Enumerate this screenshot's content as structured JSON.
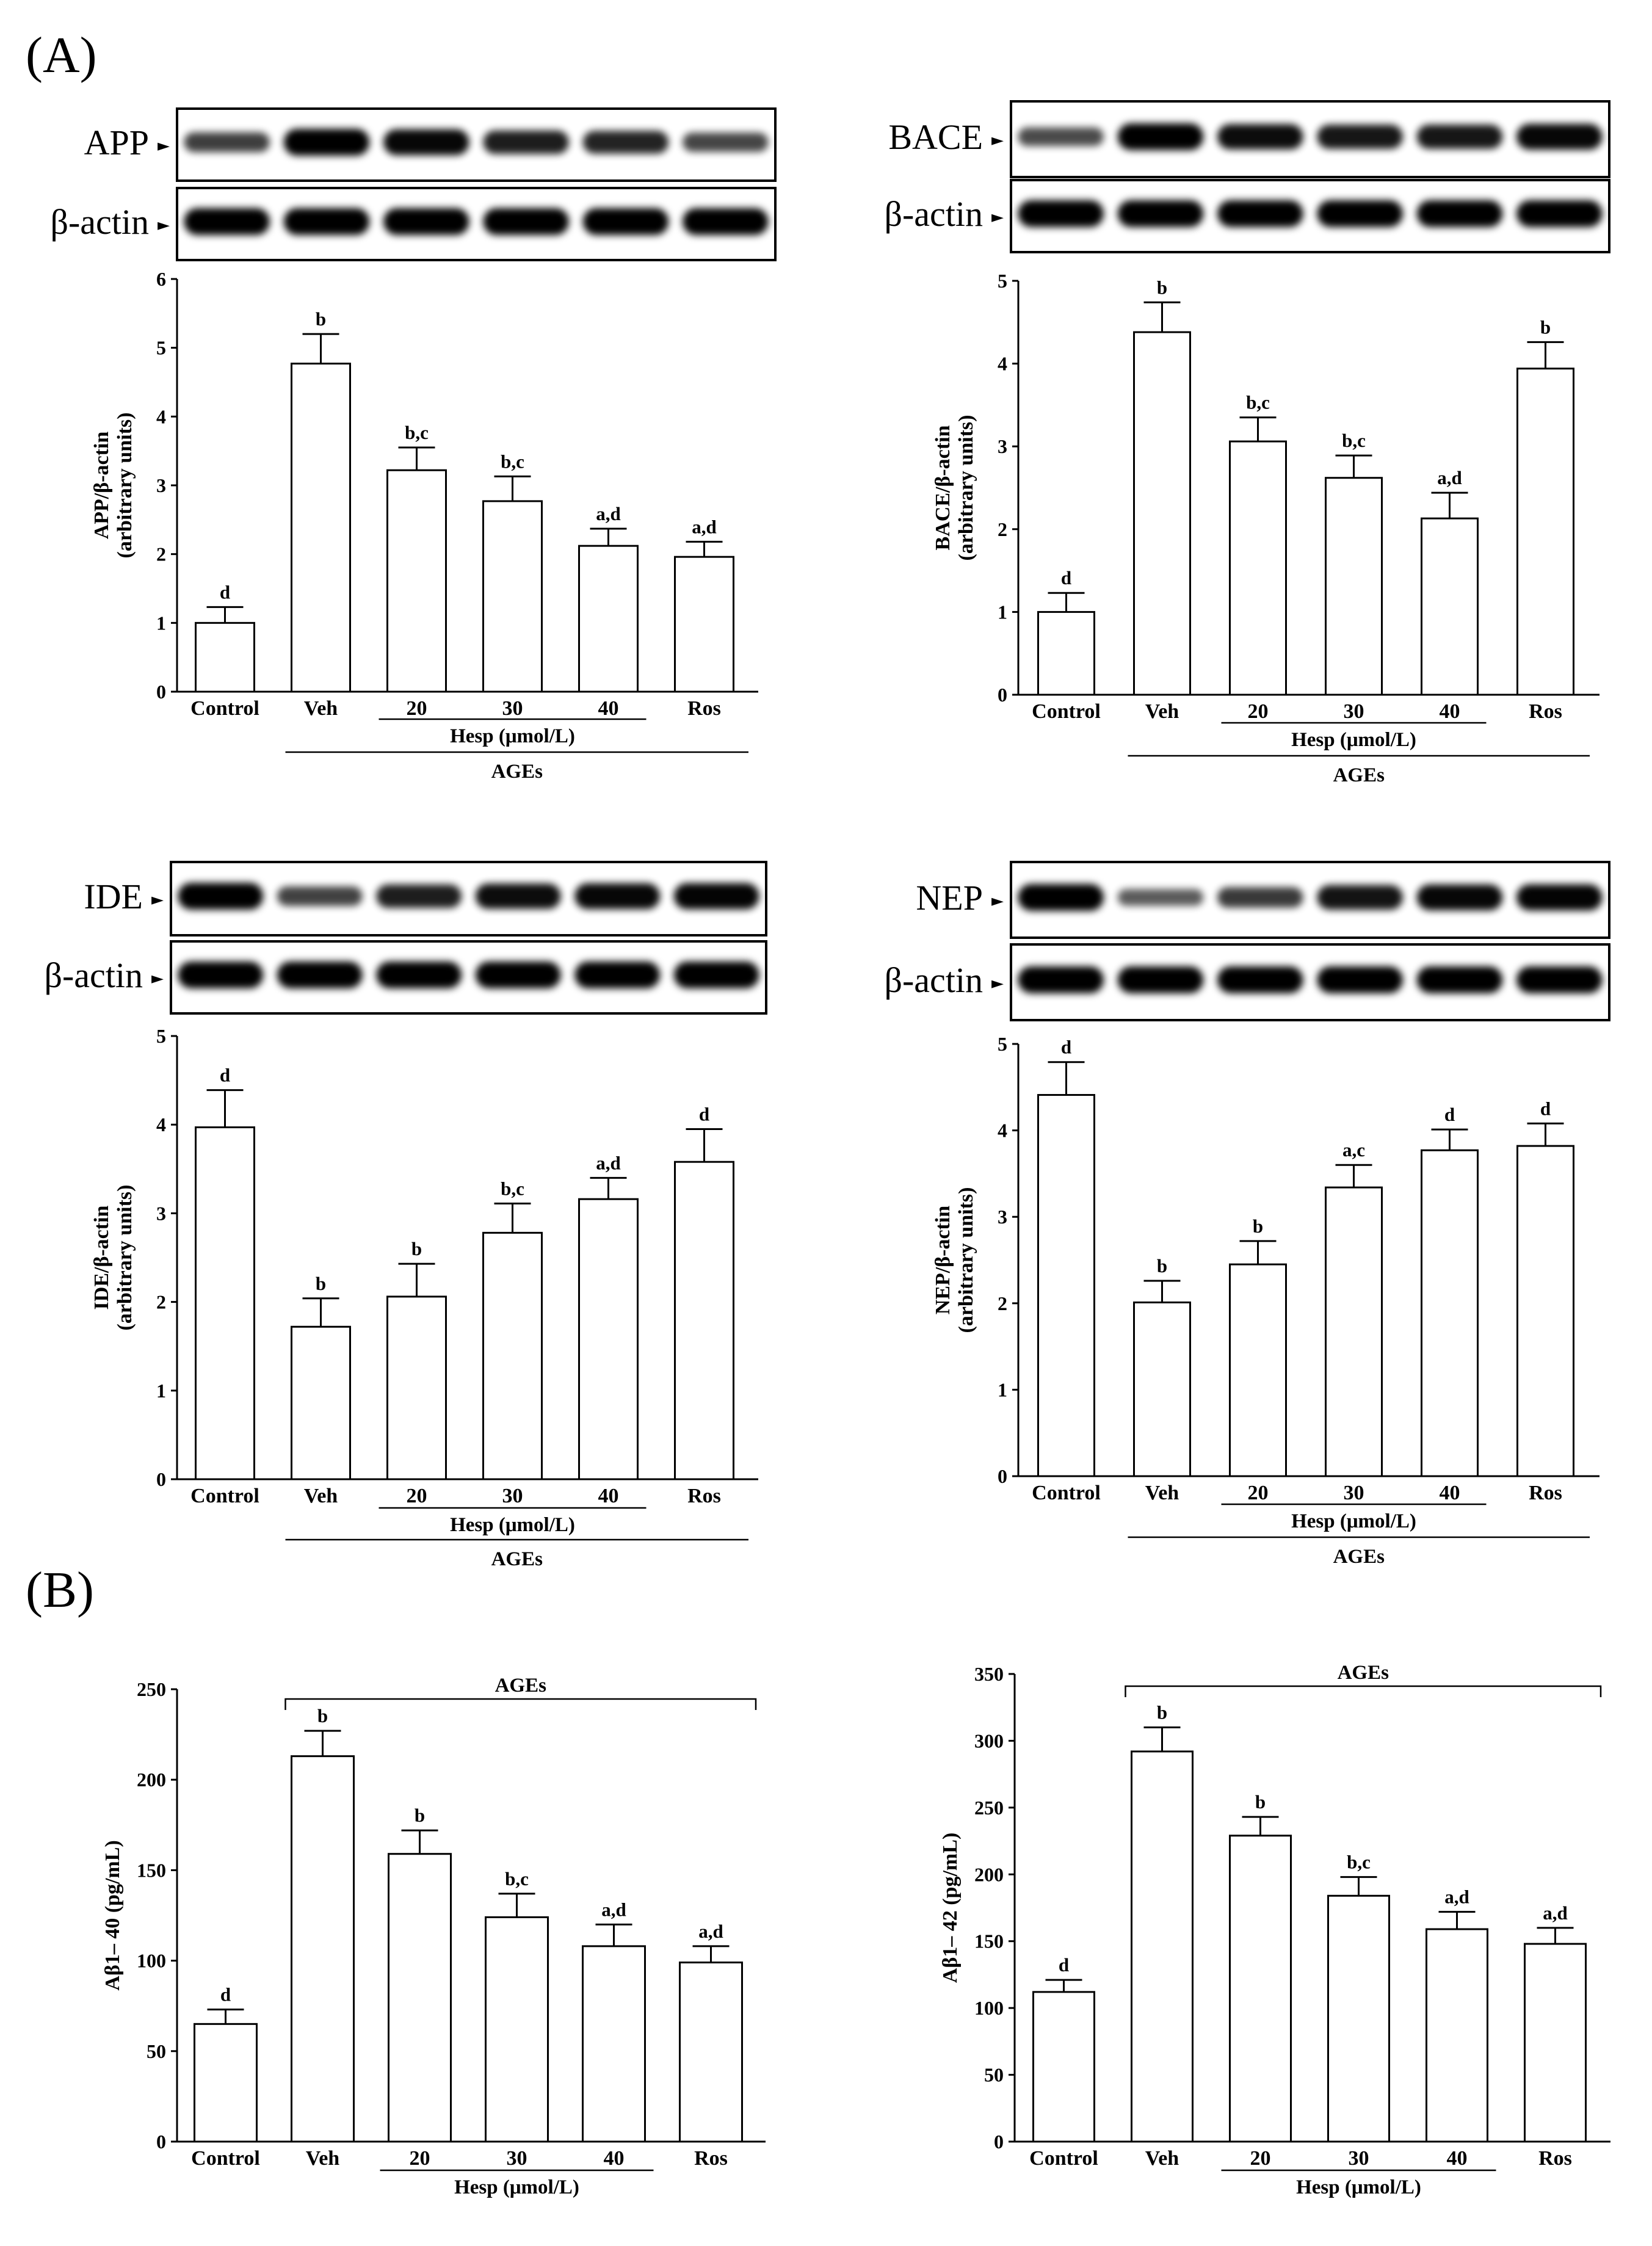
{
  "panels": {
    "a": "(A)",
    "b": "(B)"
  },
  "shared": {
    "categories": [
      "Control",
      "Veh",
      "20",
      "30",
      "40",
      "Ros"
    ],
    "hesp_label": "Hesp (μmol/L)",
    "ages_label": "AGEs",
    "band_arrow": "►"
  },
  "chart_data": [
    {
      "id": "app",
      "type": "bar",
      "title": "",
      "blot_target": "APP",
      "blot_ref": "β-actin",
      "ylabel_line1": "APP/β-actin",
      "ylabel_line2": "(arbitrary units)",
      "ylim": [
        0,
        6
      ],
      "yticks": [
        0,
        1,
        2,
        3,
        4,
        5,
        6
      ],
      "categories": [
        "Control",
        "Veh",
        "20",
        "30",
        "40",
        "Ros"
      ],
      "values": [
        1.0,
        4.77,
        3.22,
        2.77,
        2.12,
        1.96
      ],
      "errors": [
        0.23,
        0.43,
        0.33,
        0.36,
        0.25,
        0.22
      ],
      "labels": [
        "d",
        "b",
        "b,c",
        "b,c",
        "a,d",
        "a,d"
      ],
      "target_band_intensity": [
        0.62,
        1.0,
        0.95,
        0.82,
        0.78,
        0.58
      ],
      "actin_band_intensity": [
        1,
        1,
        1,
        1,
        1,
        1
      ]
    },
    {
      "id": "bace",
      "type": "bar",
      "title": "",
      "blot_target": "BACE",
      "blot_ref": "β-actin",
      "ylabel_line1": "BACE/β-actin",
      "ylabel_line2": "(arbitrary units)",
      "ylim": [
        0,
        5
      ],
      "yticks": [
        0,
        1,
        2,
        3,
        4,
        5
      ],
      "categories": [
        "Control",
        "Veh",
        "20",
        "30",
        "40",
        "Ros"
      ],
      "values": [
        1.0,
        4.38,
        3.06,
        2.62,
        2.13,
        3.94
      ],
      "errors": [
        0.23,
        0.36,
        0.29,
        0.27,
        0.31,
        0.32
      ],
      "labels": [
        "d",
        "b",
        "b,c",
        "b,c",
        "a,d",
        "b"
      ],
      "target_band_intensity": [
        0.55,
        1.0,
        0.92,
        0.86,
        0.86,
        0.95
      ],
      "actin_band_intensity": [
        1,
        1,
        1,
        1,
        1,
        1
      ]
    },
    {
      "id": "ide",
      "type": "bar",
      "title": "",
      "blot_target": "IDE",
      "blot_ref": "β-actin",
      "ylabel_line1": "IDE/β-actin",
      "ylabel_line2": "(arbitrary units)",
      "ylim": [
        0,
        5
      ],
      "yticks": [
        0,
        1,
        2,
        3,
        4,
        5
      ],
      "categories": [
        "Control",
        "Veh",
        "20",
        "30",
        "40",
        "Ros"
      ],
      "values": [
        3.97,
        1.72,
        2.06,
        2.78,
        3.16,
        3.58
      ],
      "errors": [
        0.42,
        0.32,
        0.37,
        0.33,
        0.24,
        0.37
      ],
      "labels": [
        "d",
        "b",
        "b",
        "b,c",
        "a,d",
        "d"
      ],
      "target_band_intensity": [
        1.0,
        0.6,
        0.82,
        0.92,
        0.95,
        0.97
      ],
      "actin_band_intensity": [
        1,
        1,
        1,
        1,
        1,
        1
      ]
    },
    {
      "id": "nep",
      "type": "bar",
      "title": "",
      "blot_target": "NEP",
      "blot_ref": "β-actin",
      "ylabel_line1": "NEP/β-actin",
      "ylabel_line2": "(arbitrary units)",
      "ylim": [
        0,
        5
      ],
      "yticks": [
        0,
        1,
        2,
        3,
        4,
        5
      ],
      "categories": [
        "Control",
        "Veh",
        "20",
        "30",
        "40",
        "Ros"
      ],
      "values": [
        4.41,
        2.01,
        2.45,
        3.34,
        3.77,
        3.82
      ],
      "errors": [
        0.38,
        0.25,
        0.27,
        0.26,
        0.24,
        0.26
      ],
      "labels": [
        "d",
        "b",
        "b",
        "a,c",
        "d",
        "d"
      ],
      "target_band_intensity": [
        1.0,
        0.45,
        0.65,
        0.88,
        0.95,
        0.97
      ],
      "actin_band_intensity": [
        1,
        1,
        1,
        1,
        1,
        1
      ]
    },
    {
      "id": "ab40",
      "type": "bar",
      "title": "",
      "ylabel_line1": "Aβ1– 40 (pg/mL)",
      "ylabel_line2": "",
      "ylim": [
        0,
        250
      ],
      "yticks": [
        0,
        50,
        100,
        150,
        200,
        250
      ],
      "categories": [
        "Control",
        "Veh",
        "20",
        "30",
        "40",
        "Ros"
      ],
      "values": [
        65,
        213,
        159,
        124,
        108,
        99
      ],
      "errors": [
        8,
        14,
        13,
        13,
        12,
        9
      ],
      "labels": [
        "d",
        "b",
        "b",
        "b,c",
        "a,d",
        "a,d"
      ]
    },
    {
      "id": "ab42",
      "type": "bar",
      "title": "",
      "ylabel_line1": "Aβ1– 42 (pg/mL)",
      "ylabel_line2": "",
      "ylim": [
        0,
        350
      ],
      "yticks": [
        0,
        50,
        100,
        150,
        200,
        250,
        300,
        350
      ],
      "categories": [
        "Control",
        "Veh",
        "20",
        "30",
        "40",
        "Ros"
      ],
      "values": [
        112,
        292,
        229,
        184,
        159,
        148
      ],
      "errors": [
        9,
        18,
        14,
        14,
        13,
        12
      ],
      "labels": [
        "d",
        "b",
        "b",
        "b,c",
        "a,d",
        "a,d"
      ]
    }
  ]
}
